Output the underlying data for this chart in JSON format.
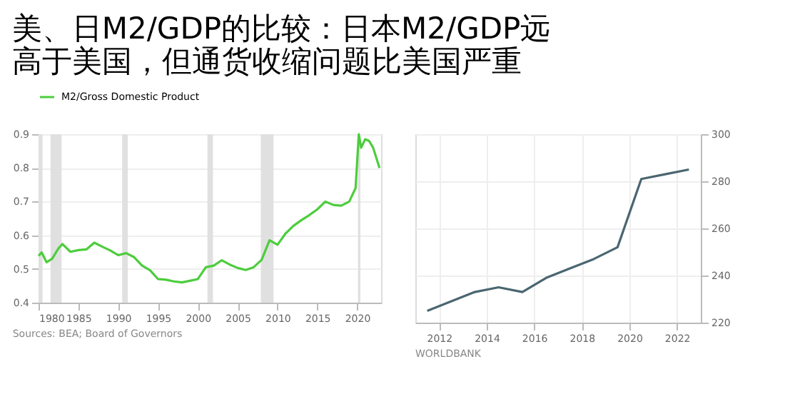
{
  "chart_data": [
    {
      "type": "line",
      "title": "美、日M2/GDP的比较：日本M2/GDP远高于美国，但通货收缩问题比美国严重",
      "series": [
        {
          "name": "M2/Gross Domestic Product",
          "color": "#4ccd3c",
          "x": [
            1980,
            1980.4,
            1981,
            1981.7,
            1982.5,
            1983,
            1984,
            1985,
            1986,
            1987,
            1988,
            1989,
            1990,
            1991,
            1992,
            1993,
            1994,
            1995,
            1996,
            1997,
            1998,
            1999,
            2000,
            2001,
            2002,
            2003,
            2004,
            2005,
            2006,
            2007,
            2008,
            2009,
            2010,
            2011,
            2012,
            2013,
            2014,
            2015,
            2016,
            2017,
            2018,
            2019,
            2019.8,
            2020.2,
            2020.5,
            2021,
            2021.5,
            2022,
            2022.8
          ],
          "values": [
            0.539,
            0.549,
            0.52,
            0.53,
            0.561,
            0.574,
            0.551,
            0.556,
            0.558,
            0.578,
            0.566,
            0.555,
            0.541,
            0.547,
            0.535,
            0.51,
            0.496,
            0.47,
            0.468,
            0.463,
            0.46,
            0.465,
            0.47,
            0.505,
            0.51,
            0.526,
            0.513,
            0.503,
            0.497,
            0.505,
            0.527,
            0.585,
            0.572,
            0.605,
            0.628,
            0.645,
            0.66,
            0.677,
            0.7,
            0.69,
            0.688,
            0.7,
            0.74,
            0.9,
            0.86,
            0.885,
            0.88,
            0.86,
            0.8
          ]
        }
      ],
      "xlim": [
        1980,
        2023
      ],
      "xticks": [
        1980,
        1985,
        1990,
        1995,
        2000,
        2005,
        2010,
        2015,
        2020
      ],
      "ylim": [
        0.4,
        0.9
      ],
      "yticks": [
        0.4,
        0.5,
        0.6,
        0.7,
        0.8,
        0.9
      ],
      "bands": [
        {
          "axis": "x",
          "from": 1980.0,
          "to": 1980.5,
          "color": "#e0e0e0"
        },
        {
          "axis": "x",
          "from": 1981.5,
          "to": 1982.9,
          "color": "#e0e0e0"
        },
        {
          "axis": "x",
          "from": 1990.5,
          "to": 1991.2,
          "color": "#e0e0e0"
        },
        {
          "axis": "x",
          "from": 2001.2,
          "to": 2001.9,
          "color": "#e0e0e0"
        },
        {
          "axis": "x",
          "from": 2007.9,
          "to": 2009.5,
          "color": "#e0e0e0"
        },
        {
          "axis": "x",
          "from": 2020.1,
          "to": 2020.4,
          "color": "#e0e0e0"
        }
      ],
      "annotations": [
        "Sources: BEA; Board of Governors"
      ],
      "grid": "y",
      "legend": "top left"
    },
    {
      "type": "line",
      "series": [
        {
          "color": "#4a6670",
          "axis": "y2",
          "x": [
            2011.5,
            2012.5,
            2013.5,
            2014.5,
            2015.5,
            2016.5,
            2017.5,
            2018.5,
            2019.5,
            2020.5,
            2021.5,
            2022.5
          ],
          "values": [
            225,
            229,
            233,
            235,
            233,
            239,
            243,
            247,
            252,
            281,
            283,
            285
          ]
        }
      ],
      "xlim": [
        2011,
        2023
      ],
      "xticks": [
        2012,
        2014,
        2016,
        2018,
        2020,
        2022
      ],
      "y2lim": [
        220,
        300
      ],
      "y2ticks": [
        220,
        240,
        260,
        280,
        300
      ],
      "annotations": [
        "WORLDBANK"
      ],
      "grid": true
    }
  ]
}
